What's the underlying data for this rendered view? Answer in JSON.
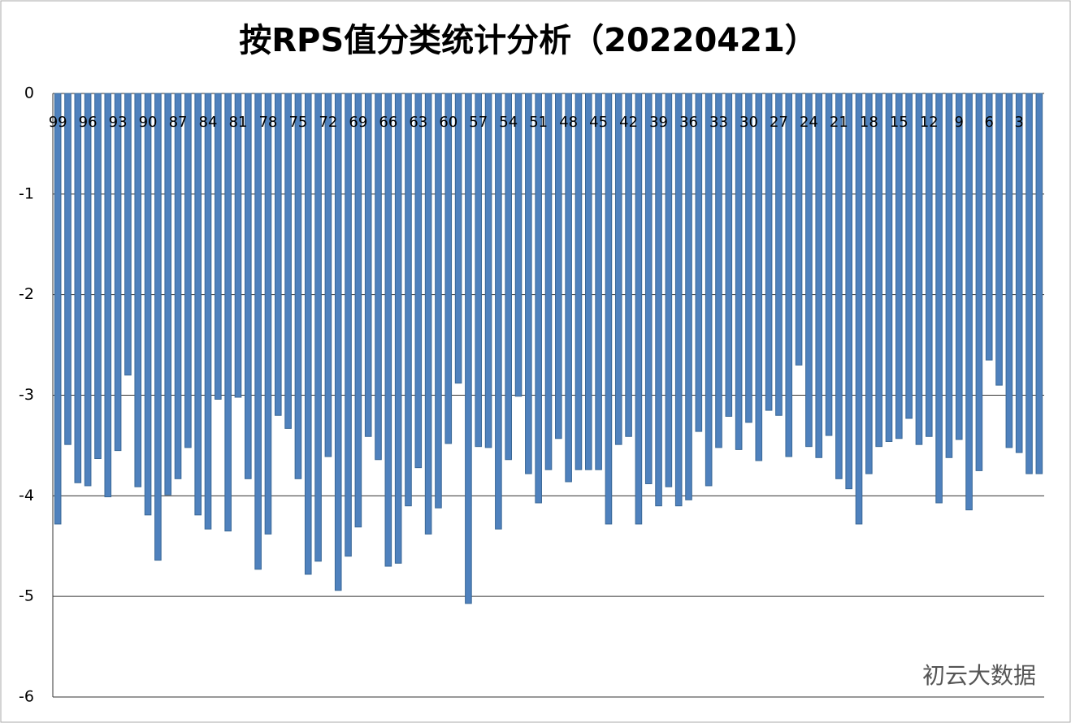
{
  "chart_data": {
    "type": "bar",
    "title": "按RPS值分类统计分析（20220421）",
    "categories": [
      "99",
      null,
      null,
      "96",
      null,
      null,
      "93",
      null,
      null,
      "90",
      null,
      null,
      "87",
      null,
      null,
      "84",
      null,
      null,
      "81",
      null,
      null,
      "78",
      null,
      null,
      "75",
      null,
      null,
      "72",
      null,
      null,
      "69",
      null,
      null,
      "66",
      null,
      null,
      "63",
      null,
      null,
      "60",
      null,
      null,
      "57",
      null,
      null,
      "54",
      null,
      null,
      "51",
      null,
      null,
      "48",
      null,
      null,
      "45",
      null,
      null,
      "42",
      null,
      null,
      "39",
      null,
      null,
      "36",
      null,
      null,
      "33",
      null,
      null,
      "30",
      null,
      null,
      "27",
      null,
      null,
      "24",
      null,
      null,
      "21",
      null,
      null,
      "18",
      null,
      null,
      "15",
      null,
      null,
      "12",
      null,
      null,
      "9",
      null,
      null,
      "6",
      null,
      null,
      "3",
      null,
      null
    ],
    "values": [
      -4.28,
      -3.49,
      -3.87,
      -3.9,
      -3.63,
      -4.01,
      -3.55,
      -2.8,
      -3.91,
      -4.19,
      -4.64,
      -3.99,
      -3.83,
      -3.52,
      -4.19,
      -4.33,
      -3.04,
      -4.35,
      -3.02,
      -3.83,
      -4.73,
      -4.38,
      -3.2,
      -3.33,
      -3.83,
      -4.78,
      -4.65,
      -3.61,
      -4.94,
      -4.6,
      -4.31,
      -3.41,
      -3.64,
      -4.7,
      -4.67,
      -4.1,
      -3.72,
      -4.38,
      -4.12,
      -3.48,
      -2.88,
      -5.07,
      -3.51,
      -3.52,
      -4.33,
      -3.64,
      -3.01,
      -3.78,
      -4.07,
      -3.74,
      -3.43,
      -3.86,
      -3.74,
      -3.74,
      -3.74,
      -4.28,
      -3.49,
      -3.41,
      -4.28,
      -3.88,
      -4.1,
      -3.91,
      -4.1,
      -4.04,
      -3.36,
      -3.9,
      -3.52,
      -3.21,
      -3.54,
      -3.27,
      -3.65,
      -3.15,
      -3.2,
      -3.61,
      -2.7,
      -3.51,
      -3.62,
      -3.4,
      -3.83,
      -3.93,
      -4.28,
      -3.78,
      -3.51,
      -3.46,
      -3.43,
      -3.23,
      -3.49,
      -3.41,
      -4.07,
      -3.62,
      -3.44,
      -4.14,
      -3.75,
      -2.65,
      -2.9,
      -3.52,
      -3.57,
      -3.78,
      -3.78
    ],
    "color": "#4f81bd",
    "ylim": [
      -6,
      0
    ],
    "yticks": [
      0,
      -1,
      -2,
      -3,
      -4,
      -5,
      -6
    ],
    "grid": true,
    "watermark": "初云大数据"
  }
}
